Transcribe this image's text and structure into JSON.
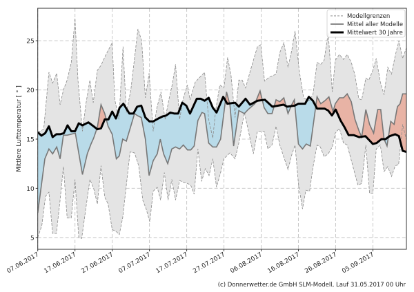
{
  "chart_data": {
    "type": "line",
    "ylabel": "Mittlere Lufttemperatur [ ° ]",
    "xlabel": "",
    "x_unit": "days since 07.06.2017",
    "xlim": [
      0,
      99
    ],
    "ylim": [
      3.8,
      28.3
    ],
    "yticks": [
      5,
      10,
      15,
      20,
      25
    ],
    "xticks": [
      {
        "day": 0,
        "label": "07.06.2017"
      },
      {
        "day": 10,
        "label": "17.06.2017"
      },
      {
        "day": 20,
        "label": "27.06.2017"
      },
      {
        "day": 30,
        "label": "07.07.2017"
      },
      {
        "day": 40,
        "label": "17.07.2017"
      },
      {
        "day": 50,
        "label": "27.07.2017"
      },
      {
        "day": 60,
        "label": "06.08.2017"
      },
      {
        "day": 70,
        "label": "16.08.2017"
      },
      {
        "day": 80,
        "label": "26.08.2017"
      },
      {
        "day": 90,
        "label": "05.09.2017"
      }
    ],
    "grid": true,
    "legend_position": "top-right",
    "legend": [
      "Modellgrenzen",
      "Mittel aller Modelle",
      "Mittelwert 30 Jahre"
    ],
    "footer": "(c) Donnerwetter.de GmbH SLM-Modell, Lauf 31.05.2017 00 Uhr",
    "colors": {
      "band": "#e4e4e4",
      "below": "#b9dbe9",
      "above": "#e8b3a5",
      "mean": "#777777",
      "clim": "#000000"
    },
    "series": {
      "max": [
        [
          0,
          15.7
        ],
        [
          1.6,
          16
        ],
        [
          3,
          21.8
        ],
        [
          4,
          20.7
        ],
        [
          5.1,
          21.7
        ],
        [
          6,
          18.5
        ],
        [
          6.9,
          20
        ],
        [
          7.9,
          21
        ],
        [
          9,
          22.8
        ],
        [
          10,
          27.3
        ],
        [
          10.8,
          21
        ],
        [
          12,
          15.8
        ],
        [
          12.9,
          18.5
        ],
        [
          14,
          21
        ],
        [
          14.9,
          18.7
        ],
        [
          16,
          22
        ],
        [
          17,
          22.5
        ],
        [
          18.2,
          23.5
        ],
        [
          20,
          24.8
        ],
        [
          20.7,
          19
        ],
        [
          21.8,
          17
        ],
        [
          22.9,
          24.4
        ],
        [
          23.8,
          17.7
        ],
        [
          25,
          20
        ],
        [
          26.9,
          26.2
        ],
        [
          27.9,
          25
        ],
        [
          28.9,
          19.2
        ],
        [
          29.9,
          21.7
        ],
        [
          31,
          15.8
        ],
        [
          32,
          18.2
        ],
        [
          33.1,
          19.8
        ],
        [
          34.2,
          17
        ],
        [
          35.2,
          19
        ],
        [
          36.1,
          20.5
        ],
        [
          37,
          22.6
        ],
        [
          38.1,
          17
        ],
        [
          39.1,
          19.2
        ],
        [
          40.2,
          20.5
        ],
        [
          40.9,
          19
        ],
        [
          42.3,
          20.8
        ],
        [
          44.8,
          21.8
        ],
        [
          45.9,
          17
        ],
        [
          47,
          15.1
        ],
        [
          47.8,
          18
        ],
        [
          48.9,
          20.5
        ],
        [
          50,
          20.2
        ],
        [
          51,
          23.3
        ],
        [
          51.9,
          21.5
        ],
        [
          53,
          17.2
        ],
        [
          54,
          21
        ],
        [
          54.9,
          21
        ],
        [
          55.8,
          20.2
        ],
        [
          56.9,
          21.7
        ],
        [
          57.9,
          23
        ],
        [
          59,
          24.4
        ],
        [
          59.9,
          24.6
        ],
        [
          60.9,
          20.9
        ],
        [
          62.2,
          21.3
        ],
        [
          64,
          21.6
        ],
        [
          65,
          23.8
        ],
        [
          66.1,
          24.8
        ],
        [
          67.2,
          22.3
        ],
        [
          68.2,
          24
        ],
        [
          69.1,
          26
        ],
        [
          70.2,
          22
        ],
        [
          71.4,
          19.2
        ],
        [
          72.8,
          18.9
        ],
        [
          73.9,
          19.5
        ],
        [
          75,
          22.8
        ],
        [
          76,
          22.6
        ],
        [
          76.9,
          23
        ],
        [
          78,
          25.8
        ],
        [
          79.1,
          19.8
        ],
        [
          79.9,
          23
        ],
        [
          81,
          23.6
        ],
        [
          82.1,
          23.1
        ],
        [
          83.1,
          23.6
        ],
        [
          84.2,
          22.8
        ],
        [
          85.2,
          21.5
        ],
        [
          86.2,
          19.1
        ],
        [
          87,
          19
        ],
        [
          88.1,
          21.2
        ],
        [
          88.9,
          21
        ],
        [
          90,
          22
        ],
        [
          90.9,
          23.2
        ],
        [
          92,
          20.8
        ],
        [
          93,
          19.5
        ],
        [
          94,
          22.3
        ],
        [
          95,
          21.6
        ],
        [
          96,
          23.5
        ],
        [
          97,
          25
        ],
        [
          98,
          23.2
        ],
        [
          99,
          24.3
        ]
      ],
      "min": [
        [
          0,
          5
        ],
        [
          1.1,
          6.2
        ],
        [
          2.1,
          9.2
        ],
        [
          3,
          9.6
        ],
        [
          4,
          5.4
        ],
        [
          5,
          5.4
        ],
        [
          6,
          8.8
        ],
        [
          6.9,
          12.2
        ],
        [
          7.9,
          7
        ],
        [
          9,
          7
        ],
        [
          10,
          10.9
        ],
        [
          11,
          5
        ],
        [
          11.8,
          4.9
        ],
        [
          12.9,
          7.9
        ],
        [
          14,
          10.9
        ],
        [
          15,
          10
        ],
        [
          16,
          8.4
        ],
        [
          17,
          12.3
        ],
        [
          18,
          9.1
        ],
        [
          18.9,
          8.4
        ],
        [
          20,
          5.8
        ],
        [
          21.1,
          5.6
        ],
        [
          21.9,
          5.3
        ],
        [
          22.8,
          7
        ],
        [
          24.8,
          13.7
        ],
        [
          26,
          13.6
        ],
        [
          27.1,
          12.3
        ],
        [
          28.2,
          8.8
        ],
        [
          29.1,
          7.9
        ],
        [
          30.1,
          6.6
        ],
        [
          31,
          9.7
        ],
        [
          32.1,
          10.1
        ],
        [
          33,
          8.8
        ],
        [
          34,
          11.6
        ],
        [
          35,
          8.8
        ],
        [
          36,
          10.9
        ],
        [
          37,
          8.8
        ],
        [
          38.1,
          10.8
        ],
        [
          39.1,
          10.6
        ],
        [
          40.2,
          10.5
        ],
        [
          41.1,
          10.3
        ],
        [
          42,
          9.4
        ],
        [
          43,
          14
        ],
        [
          44,
          10.7
        ],
        [
          45,
          12
        ],
        [
          46,
          11.3
        ],
        [
          47,
          13
        ],
        [
          48,
          10.1
        ],
        [
          49.1,
          11.6
        ],
        [
          50,
          13
        ],
        [
          51.6,
          13.6
        ],
        [
          53,
          13
        ],
        [
          54,
          14.6
        ],
        [
          55.5,
          17.7
        ],
        [
          57.9,
          13.5
        ],
        [
          59,
          15.8
        ],
        [
          60.8,
          15.8
        ],
        [
          61.8,
          14
        ],
        [
          62.9,
          14.4
        ],
        [
          64,
          16.3
        ],
        [
          65,
          14.4
        ],
        [
          67.2,
          11.9
        ],
        [
          68.2,
          13.4
        ],
        [
          69.1,
          14.4
        ],
        [
          70,
          10.5
        ],
        [
          71.1,
          7.9
        ],
        [
          72,
          9.8
        ],
        [
          73,
          9.7
        ],
        [
          73.9,
          12.1
        ],
        [
          75,
          14.4
        ],
        [
          75.9,
          14.2
        ],
        [
          76.9,
          13.2
        ],
        [
          78,
          13.5
        ],
        [
          79.1,
          14.2
        ],
        [
          79.9,
          15.6
        ],
        [
          81,
          16.1
        ],
        [
          82.1,
          14.6
        ],
        [
          83.1,
          14.4
        ],
        [
          86,
          10.3
        ],
        [
          87,
          10.5
        ],
        [
          88.1,
          14.4
        ],
        [
          89.1,
          9.5
        ],
        [
          90,
          9.5
        ],
        [
          90.9,
          14
        ],
        [
          92,
          14.4
        ],
        [
          93,
          11.7
        ],
        [
          94,
          12.2
        ],
        [
          95,
          11.2
        ],
        [
          96,
          12.3
        ],
        [
          96.9,
          12.4
        ],
        [
          98,
          16.5
        ],
        [
          99,
          14.9
        ]
      ],
      "model_mean": [
        [
          0,
          7.5
        ],
        [
          1.9,
          13
        ],
        [
          3,
          14
        ],
        [
          4,
          13.5
        ],
        [
          5.1,
          14.2
        ],
        [
          6,
          13
        ],
        [
          6.9,
          15.4
        ],
        [
          7.9,
          15.4
        ],
        [
          9,
          15.5
        ],
        [
          10.1,
          15.6
        ],
        [
          12,
          11.4
        ],
        [
          13.3,
          13.5
        ],
        [
          14.3,
          14.5
        ],
        [
          15,
          15.1
        ],
        [
          16,
          16.2
        ],
        [
          17,
          18.5
        ],
        [
          18,
          17.6
        ],
        [
          18.9,
          16.3
        ],
        [
          20,
          15.5
        ],
        [
          21.1,
          13
        ],
        [
          21.9,
          13.3
        ],
        [
          22.8,
          15
        ],
        [
          23.8,
          14.8
        ],
        [
          26,
          17.6
        ],
        [
          26.7,
          17.4
        ],
        [
          27.8,
          17.2
        ],
        [
          28.9,
          15
        ],
        [
          29.9,
          11.3
        ],
        [
          31,
          12.8
        ],
        [
          32.1,
          13.5
        ],
        [
          32.9,
          15
        ],
        [
          33.8,
          13.5
        ],
        [
          34.9,
          12.5
        ],
        [
          36,
          14
        ],
        [
          37,
          14.2
        ],
        [
          38.1,
          14
        ],
        [
          39.1,
          14.4
        ],
        [
          40.2,
          13.9
        ],
        [
          41.1,
          13.9
        ],
        [
          42,
          14.3
        ],
        [
          43,
          16.9
        ],
        [
          44.1,
          17.7
        ],
        [
          44.8,
          17.6
        ],
        [
          45.9,
          14.6
        ],
        [
          47,
          14.2
        ],
        [
          48,
          14.2
        ],
        [
          49.1,
          15
        ],
        [
          50.7,
          19.8
        ],
        [
          51.6,
          18.5
        ],
        [
          52.6,
          14.3
        ],
        [
          54,
          17.9
        ],
        [
          55.5,
          17.6
        ],
        [
          56.5,
          18
        ],
        [
          58.3,
          18.6
        ],
        [
          59.7,
          19.9
        ],
        [
          60.8,
          18.2
        ],
        [
          61.8,
          17.6
        ],
        [
          62.9,
          17.6
        ],
        [
          64,
          19
        ],
        [
          65,
          18.8
        ],
        [
          66.1,
          19.2
        ],
        [
          67.2,
          17.6
        ],
        [
          68.2,
          18.5
        ],
        [
          68.9,
          19
        ],
        [
          70,
          14.5
        ],
        [
          71.1,
          14
        ],
        [
          72.1,
          14.5
        ],
        [
          73.2,
          14.3
        ],
        [
          75,
          19.3
        ],
        [
          76,
          18.6
        ],
        [
          77.1,
          18.9
        ],
        [
          78.2,
          19.3
        ],
        [
          79.3,
          17.8
        ],
        [
          79.9,
          18.6
        ],
        [
          81,
          19.2
        ],
        [
          82.1,
          19.2
        ],
        [
          83.1,
          19.6
        ],
        [
          84.2,
          18.8
        ],
        [
          85.2,
          17
        ],
        [
          86.3,
          15.8
        ],
        [
          87,
          15.2
        ],
        [
          88.1,
          18
        ],
        [
          89.1,
          16.5
        ],
        [
          90.2,
          15.6
        ],
        [
          91.3,
          18
        ],
        [
          92.1,
          18
        ],
        [
          93,
          15
        ],
        [
          93.8,
          14.3
        ],
        [
          94.8,
          16.8
        ],
        [
          95.7,
          16.5
        ],
        [
          96.6,
          18.3
        ],
        [
          97.3,
          18.6
        ],
        [
          98,
          19.6
        ],
        [
          99,
          19.6
        ]
      ],
      "clim_30y": [
        [
          0,
          15.7
        ],
        [
          1,
          15.35
        ],
        [
          2,
          15.6
        ],
        [
          3,
          16.3
        ],
        [
          4,
          15.2
        ],
        [
          5,
          15.5
        ],
        [
          6,
          15.5
        ],
        [
          7,
          15.6
        ],
        [
          8,
          16.4
        ],
        [
          9,
          15.8
        ],
        [
          10,
          15.8
        ],
        [
          11,
          16.6
        ],
        [
          12,
          16.4
        ],
        [
          13.6,
          16.7
        ],
        [
          15,
          16.3
        ],
        [
          16,
          16
        ],
        [
          17,
          16.1
        ],
        [
          18,
          17
        ],
        [
          19,
          17
        ],
        [
          20,
          17.8
        ],
        [
          21,
          17.1
        ],
        [
          22,
          18.2
        ],
        [
          23,
          18.6
        ],
        [
          24.6,
          17.6
        ],
        [
          25.7,
          17.6
        ],
        [
          26.7,
          18.3
        ],
        [
          27.8,
          18.4
        ],
        [
          28.9,
          17.2
        ],
        [
          30,
          16.8
        ],
        [
          31,
          16.8
        ],
        [
          32.4,
          17.1
        ],
        [
          33.5,
          17.3
        ],
        [
          34.5,
          17.4
        ],
        [
          35.6,
          17.7
        ],
        [
          36.7,
          17.6
        ],
        [
          37.7,
          17.6
        ],
        [
          38.8,
          18.7
        ],
        [
          39.9,
          18.4
        ],
        [
          40.9,
          17.6
        ],
        [
          42.7,
          19.1
        ],
        [
          43.8,
          19.1
        ],
        [
          44.8,
          18.9
        ],
        [
          45.9,
          19.2
        ],
        [
          47,
          18.2
        ],
        [
          48,
          17.7
        ],
        [
          49.8,
          19.3
        ],
        [
          50.9,
          18.6
        ],
        [
          53,
          18.7
        ],
        [
          54,
          18.3
        ],
        [
          55.8,
          19.1
        ],
        [
          57,
          18.5
        ],
        [
          59,
          18.9
        ],
        [
          61,
          19
        ],
        [
          63,
          18.3
        ],
        [
          66,
          18.5
        ],
        [
          67,
          18.3
        ],
        [
          69,
          18.4
        ],
        [
          70,
          18.6
        ],
        [
          71.8,
          18.6
        ],
        [
          72.8,
          19.3
        ],
        [
          73.9,
          18.9
        ],
        [
          75,
          18.1
        ],
        [
          77,
          18.1
        ],
        [
          78,
          17.9
        ],
        [
          79,
          17.4
        ],
        [
          80,
          18
        ],
        [
          81.3,
          16.9
        ],
        [
          82.4,
          16.2
        ],
        [
          83.5,
          15.4
        ],
        [
          84.9,
          15.4
        ],
        [
          86.3,
          15.2
        ],
        [
          88,
          15.3
        ],
        [
          89,
          14.9
        ],
        [
          90,
          14.5
        ],
        [
          91,
          14.6
        ],
        [
          92.3,
          15
        ],
        [
          93.4,
          15
        ],
        [
          94.5,
          15.3
        ],
        [
          96,
          15.5
        ],
        [
          97,
          15.3
        ],
        [
          98,
          13.8
        ],
        [
          99,
          13.7
        ]
      ]
    }
  }
}
